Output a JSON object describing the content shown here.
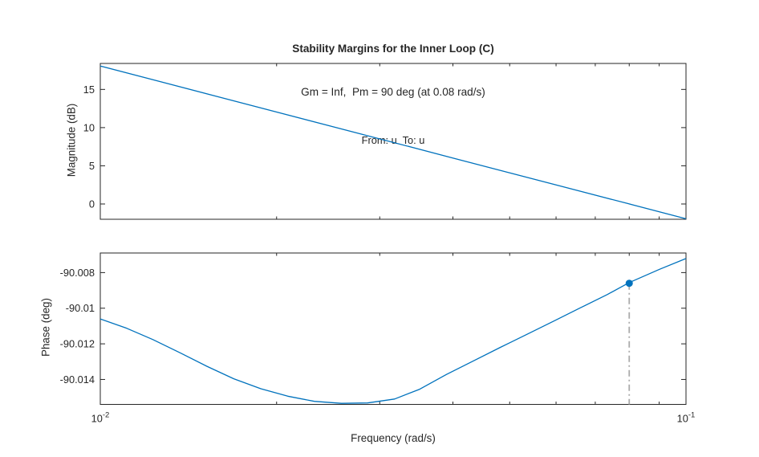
{
  "header": {
    "title": "Stability Margins for the Inner Loop (C)",
    "subtitle": "Gm = Inf,  Pm = 90 deg (at 0.08 rad/s)",
    "io_label": "From: u  To: u"
  },
  "xlabel": "Frequency (rad/s)",
  "colors": {
    "line": "#0072BD",
    "axes": "#262626",
    "dropline": "#ababab",
    "background": "#ffffff"
  },
  "chart_data": [
    {
      "id": "magnitude",
      "type": "line",
      "x_scale": "log",
      "grid": false,
      "ylabel": "Magnitude (dB)",
      "xlim": [
        0.01,
        0.1
      ],
      "ylim": [
        -2,
        18.4
      ],
      "yticks": [
        15,
        10,
        5,
        0
      ],
      "ytick_labels": [
        "15",
        "10",
        "5",
        "0"
      ],
      "x_major_ticks": [
        0.01,
        0.1
      ],
      "x_minor_ticks": [
        0.02,
        0.03,
        0.04,
        0.05,
        0.06,
        0.07,
        0.08,
        0.09
      ],
      "series": [
        {
          "name": "open-loop magnitude",
          "color": "#0072BD",
          "x": [
            0.01,
            0.0126,
            0.0158,
            0.02,
            0.0251,
            0.0316,
            0.0398,
            0.0501,
            0.0631,
            0.0794,
            0.1
          ],
          "y": [
            18.06,
            16.05,
            14.09,
            12.04,
            10.07,
            8.07,
            6.06,
            4.06,
            2.06,
            0.07,
            -1.94
          ]
        }
      ]
    },
    {
      "id": "phase",
      "type": "line",
      "x_scale": "log",
      "grid": false,
      "ylabel": "Phase (deg)",
      "xlim": [
        0.01,
        0.1
      ],
      "ylim": [
        -90.0154,
        -90.0069
      ],
      "yticks": [
        -90.008,
        -90.01,
        -90.012,
        -90.014
      ],
      "ytick_labels": [
        "-90.008",
        "-90.01",
        "-90.012",
        "-90.014"
      ],
      "x_major_ticks": [
        0.01,
        0.1
      ],
      "x_minor_ticks": [
        0.02,
        0.03,
        0.04,
        0.05,
        0.06,
        0.07,
        0.08,
        0.09
      ],
      "xtick_labels": [
        {
          "f": 0.01,
          "base": "10",
          "exp": "-2"
        },
        {
          "f": 0.1,
          "base": "10",
          "exp": "-1"
        }
      ],
      "series": [
        {
          "name": "open-loop phase",
          "color": "#0072BD",
          "x": [
            0.01,
            0.0111,
            0.0123,
            0.0137,
            0.0152,
            0.0169,
            0.0188,
            0.0209,
            0.0232,
            0.0258,
            0.0286,
            0.0318,
            0.0351,
            0.039,
            0.0434,
            0.0482,
            0.0535,
            0.0595,
            0.0661,
            0.0734,
            0.08,
            0.0902,
            0.1
          ],
          "y": [
            -90.0106,
            -90.01113,
            -90.01176,
            -90.01251,
            -90.01326,
            -90.01396,
            -90.01452,
            -90.01494,
            -90.01523,
            -90.01534,
            -90.01532,
            -90.0151,
            -90.01455,
            -90.01372,
            -90.01295,
            -90.0122,
            -90.01147,
            -90.01072,
            -90.00997,
            -90.00923,
            -90.00856,
            -90.00781,
            -90.00721
          ]
        }
      ],
      "marker": {
        "name": "phase-margin-point",
        "f": 0.08,
        "value": -90.0086,
        "color": "#0072BD",
        "dropline": true
      }
    }
  ]
}
